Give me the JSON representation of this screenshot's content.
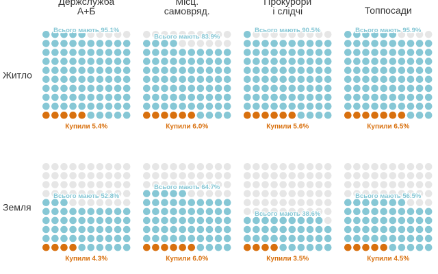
{
  "chart_data": {
    "type": "waffle",
    "colors": {
      "have": "#86c7d5",
      "bought": "#d8700e",
      "empty": "#e6e6e6"
    },
    "columns": [
      {
        "title_lines": [
          "Держслужба",
          "А+Б"
        ]
      },
      {
        "title_lines": [
          "Місц.",
          "самовряд."
        ]
      },
      {
        "title_lines": [
          "Прокурори",
          "і слідчі"
        ]
      },
      {
        "title_lines": [
          "Топпосади"
        ]
      }
    ],
    "rows": [
      {
        "label": "Житло",
        "cells": [
          {
            "have": 95.1,
            "bought": 5.4,
            "have_label": "Всього мають 95.1%",
            "bought_label": "Купили 5.4%"
          },
          {
            "have": 83.9,
            "bought": 6.0,
            "have_label": "Всього мають 83.9%",
            "bought_label": "Купили 6.0%"
          },
          {
            "have": 90.5,
            "bought": 5.6,
            "have_label": "Всього мають 90.5%",
            "bought_label": "Купили 5.6%"
          },
          {
            "have": 95.9,
            "bought": 6.5,
            "have_label": "Всього мають 95.9%",
            "bought_label": "Купили 6.5%"
          }
        ]
      },
      {
        "label": "Земля",
        "cells": [
          {
            "have": 52.8,
            "bought": 4.3,
            "have_label": "Всього мають 52.8%",
            "bought_label": "Купили 4.3%"
          },
          {
            "have": 64.7,
            "bought": 6.0,
            "have_label": "Всього мають 64.7%",
            "bought_label": "Купили 6.0%"
          },
          {
            "have": 38.6,
            "bought": 3.5,
            "have_label": "Всього мають 38.6%",
            "bought_label": "Купили 3.5%"
          },
          {
            "have": 56.5,
            "bought": 4.5,
            "have_label": "Всього мають 56.5%",
            "bought_label": "Купили 4.5%"
          }
        ]
      }
    ]
  }
}
